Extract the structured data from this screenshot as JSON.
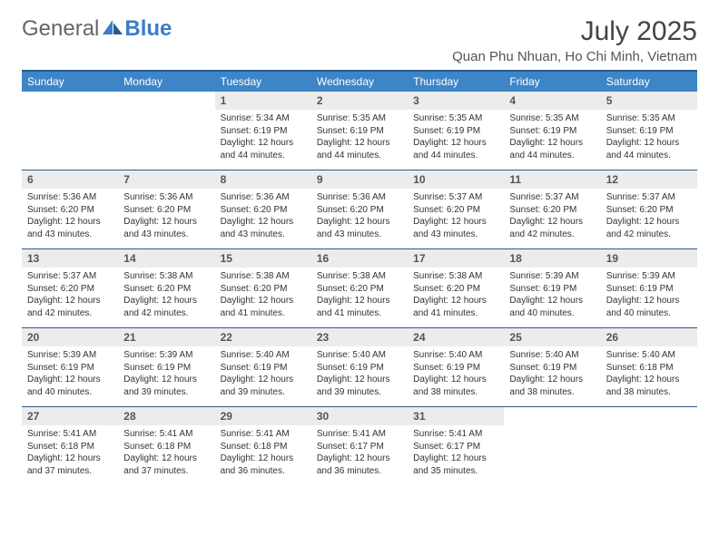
{
  "brand": {
    "part1": "General",
    "part2": "Blue"
  },
  "title": "July 2025",
  "location": "Quan Phu Nhuan, Ho Chi Minh, Vietnam",
  "colors": {
    "header_bg": "#3d85c6",
    "border": "#2a5a8a",
    "daynum_bg": "#ececec",
    "text": "#333333",
    "brand_blue": "#3d7cc9"
  },
  "day_names": [
    "Sunday",
    "Monday",
    "Tuesday",
    "Wednesday",
    "Thursday",
    "Friday",
    "Saturday"
  ],
  "weeks": [
    [
      {
        "day": "",
        "sunrise": "",
        "sunset": "",
        "daylight": ""
      },
      {
        "day": "",
        "sunrise": "",
        "sunset": "",
        "daylight": ""
      },
      {
        "day": "1",
        "sunrise": "Sunrise: 5:34 AM",
        "sunset": "Sunset: 6:19 PM",
        "daylight": "Daylight: 12 hours and 44 minutes."
      },
      {
        "day": "2",
        "sunrise": "Sunrise: 5:35 AM",
        "sunset": "Sunset: 6:19 PM",
        "daylight": "Daylight: 12 hours and 44 minutes."
      },
      {
        "day": "3",
        "sunrise": "Sunrise: 5:35 AM",
        "sunset": "Sunset: 6:19 PM",
        "daylight": "Daylight: 12 hours and 44 minutes."
      },
      {
        "day": "4",
        "sunrise": "Sunrise: 5:35 AM",
        "sunset": "Sunset: 6:19 PM",
        "daylight": "Daylight: 12 hours and 44 minutes."
      },
      {
        "day": "5",
        "sunrise": "Sunrise: 5:35 AM",
        "sunset": "Sunset: 6:19 PM",
        "daylight": "Daylight: 12 hours and 44 minutes."
      }
    ],
    [
      {
        "day": "6",
        "sunrise": "Sunrise: 5:36 AM",
        "sunset": "Sunset: 6:20 PM",
        "daylight": "Daylight: 12 hours and 43 minutes."
      },
      {
        "day": "7",
        "sunrise": "Sunrise: 5:36 AM",
        "sunset": "Sunset: 6:20 PM",
        "daylight": "Daylight: 12 hours and 43 minutes."
      },
      {
        "day": "8",
        "sunrise": "Sunrise: 5:36 AM",
        "sunset": "Sunset: 6:20 PM",
        "daylight": "Daylight: 12 hours and 43 minutes."
      },
      {
        "day": "9",
        "sunrise": "Sunrise: 5:36 AM",
        "sunset": "Sunset: 6:20 PM",
        "daylight": "Daylight: 12 hours and 43 minutes."
      },
      {
        "day": "10",
        "sunrise": "Sunrise: 5:37 AM",
        "sunset": "Sunset: 6:20 PM",
        "daylight": "Daylight: 12 hours and 43 minutes."
      },
      {
        "day": "11",
        "sunrise": "Sunrise: 5:37 AM",
        "sunset": "Sunset: 6:20 PM",
        "daylight": "Daylight: 12 hours and 42 minutes."
      },
      {
        "day": "12",
        "sunrise": "Sunrise: 5:37 AM",
        "sunset": "Sunset: 6:20 PM",
        "daylight": "Daylight: 12 hours and 42 minutes."
      }
    ],
    [
      {
        "day": "13",
        "sunrise": "Sunrise: 5:37 AM",
        "sunset": "Sunset: 6:20 PM",
        "daylight": "Daylight: 12 hours and 42 minutes."
      },
      {
        "day": "14",
        "sunrise": "Sunrise: 5:38 AM",
        "sunset": "Sunset: 6:20 PM",
        "daylight": "Daylight: 12 hours and 42 minutes."
      },
      {
        "day": "15",
        "sunrise": "Sunrise: 5:38 AM",
        "sunset": "Sunset: 6:20 PM",
        "daylight": "Daylight: 12 hours and 41 minutes."
      },
      {
        "day": "16",
        "sunrise": "Sunrise: 5:38 AM",
        "sunset": "Sunset: 6:20 PM",
        "daylight": "Daylight: 12 hours and 41 minutes."
      },
      {
        "day": "17",
        "sunrise": "Sunrise: 5:38 AM",
        "sunset": "Sunset: 6:20 PM",
        "daylight": "Daylight: 12 hours and 41 minutes."
      },
      {
        "day": "18",
        "sunrise": "Sunrise: 5:39 AM",
        "sunset": "Sunset: 6:19 PM",
        "daylight": "Daylight: 12 hours and 40 minutes."
      },
      {
        "day": "19",
        "sunrise": "Sunrise: 5:39 AM",
        "sunset": "Sunset: 6:19 PM",
        "daylight": "Daylight: 12 hours and 40 minutes."
      }
    ],
    [
      {
        "day": "20",
        "sunrise": "Sunrise: 5:39 AM",
        "sunset": "Sunset: 6:19 PM",
        "daylight": "Daylight: 12 hours and 40 minutes."
      },
      {
        "day": "21",
        "sunrise": "Sunrise: 5:39 AM",
        "sunset": "Sunset: 6:19 PM",
        "daylight": "Daylight: 12 hours and 39 minutes."
      },
      {
        "day": "22",
        "sunrise": "Sunrise: 5:40 AM",
        "sunset": "Sunset: 6:19 PM",
        "daylight": "Daylight: 12 hours and 39 minutes."
      },
      {
        "day": "23",
        "sunrise": "Sunrise: 5:40 AM",
        "sunset": "Sunset: 6:19 PM",
        "daylight": "Daylight: 12 hours and 39 minutes."
      },
      {
        "day": "24",
        "sunrise": "Sunrise: 5:40 AM",
        "sunset": "Sunset: 6:19 PM",
        "daylight": "Daylight: 12 hours and 38 minutes."
      },
      {
        "day": "25",
        "sunrise": "Sunrise: 5:40 AM",
        "sunset": "Sunset: 6:19 PM",
        "daylight": "Daylight: 12 hours and 38 minutes."
      },
      {
        "day": "26",
        "sunrise": "Sunrise: 5:40 AM",
        "sunset": "Sunset: 6:18 PM",
        "daylight": "Daylight: 12 hours and 38 minutes."
      }
    ],
    [
      {
        "day": "27",
        "sunrise": "Sunrise: 5:41 AM",
        "sunset": "Sunset: 6:18 PM",
        "daylight": "Daylight: 12 hours and 37 minutes."
      },
      {
        "day": "28",
        "sunrise": "Sunrise: 5:41 AM",
        "sunset": "Sunset: 6:18 PM",
        "daylight": "Daylight: 12 hours and 37 minutes."
      },
      {
        "day": "29",
        "sunrise": "Sunrise: 5:41 AM",
        "sunset": "Sunset: 6:18 PM",
        "daylight": "Daylight: 12 hours and 36 minutes."
      },
      {
        "day": "30",
        "sunrise": "Sunrise: 5:41 AM",
        "sunset": "Sunset: 6:17 PM",
        "daylight": "Daylight: 12 hours and 36 minutes."
      },
      {
        "day": "31",
        "sunrise": "Sunrise: 5:41 AM",
        "sunset": "Sunset: 6:17 PM",
        "daylight": "Daylight: 12 hours and 35 minutes."
      },
      {
        "day": "",
        "sunrise": "",
        "sunset": "",
        "daylight": ""
      },
      {
        "day": "",
        "sunrise": "",
        "sunset": "",
        "daylight": ""
      }
    ]
  ]
}
